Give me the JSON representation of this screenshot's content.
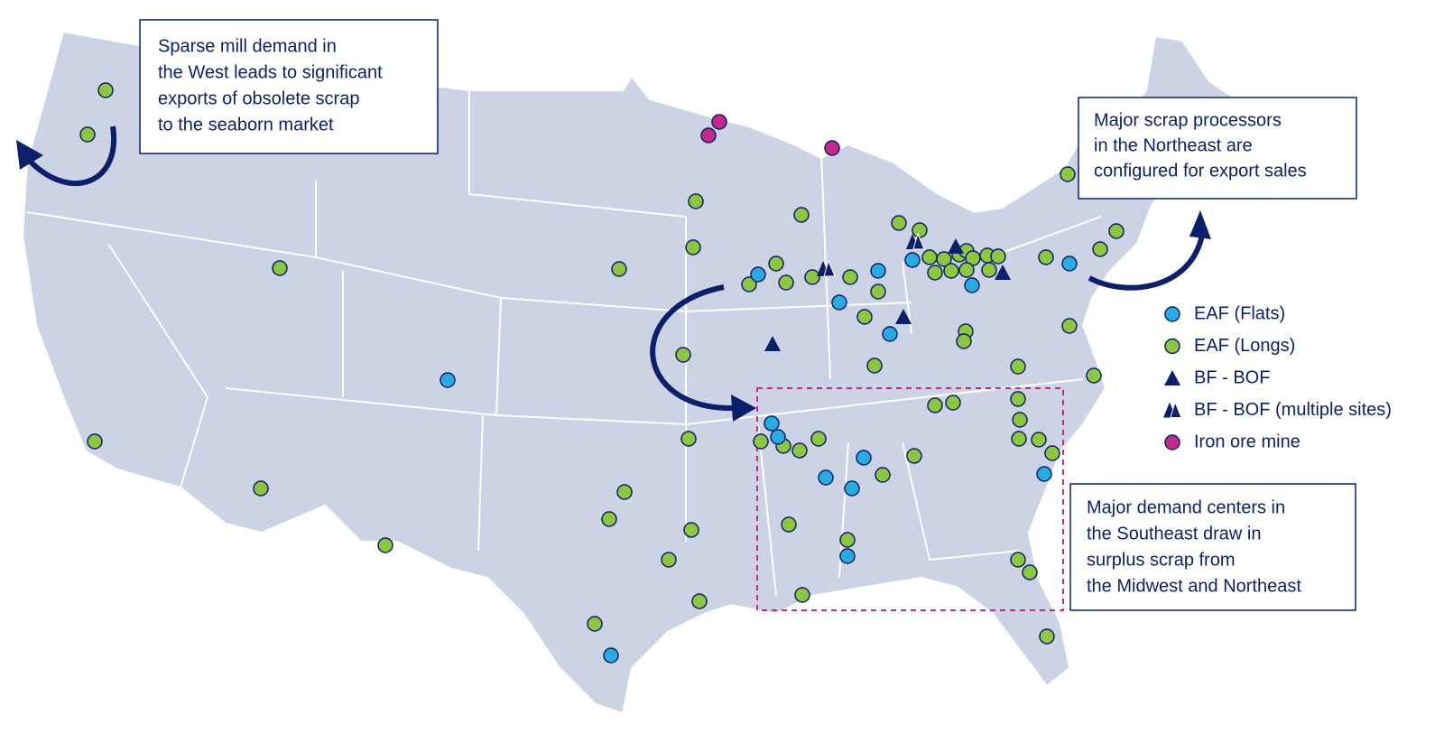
{
  "callouts": [
    {
      "lines": [
        "Sparse mill demand in",
        "the West leads to significant",
        "exports of obsolete scrap",
        "to the seaborn market"
      ]
    },
    {
      "lines": [
        "Major scrap processors",
        "in the Northeast are",
        "configured for export sales"
      ]
    },
    {
      "lines": [
        "Major demand centers in",
        "the Southeast draw in",
        "surplus scrap from",
        "the Midwest and Northeast"
      ]
    }
  ],
  "legend": {
    "items": [
      {
        "label": "EAF (Flats)"
      },
      {
        "label": "EAF (Longs)"
      },
      {
        "label": "BF - BOF"
      },
      {
        "label": "BF - BOF (multiple sites)"
      },
      {
        "label": "Iron ore mine"
      }
    ]
  }
}
